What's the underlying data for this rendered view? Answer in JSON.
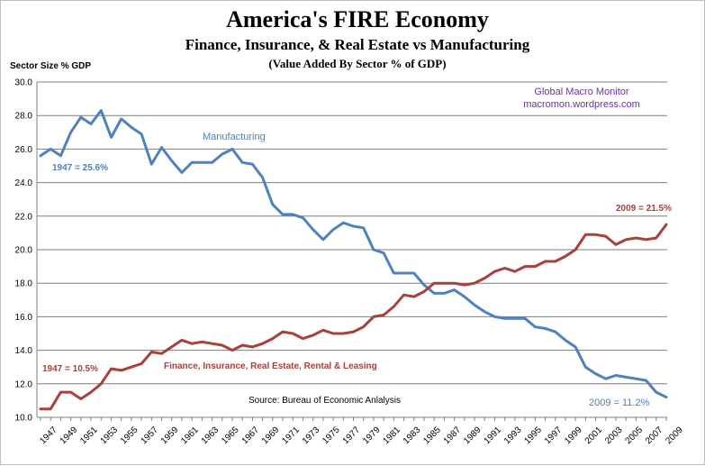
{
  "chart_data": {
    "type": "line",
    "title": "America's FIRE Economy",
    "subtitle": "Finance, Insurance, & Real Estate vs Manufacturing",
    "subtitle2": "(Value Added By Sector % of GDP)",
    "ylabel": "Sector Size % GDP",
    "ylim": [
      10.0,
      30.0
    ],
    "yticks": [
      "10.0",
      "12.0",
      "14.0",
      "16.0",
      "18.0",
      "20.0",
      "22.0",
      "24.0",
      "26.0",
      "28.0",
      "30.0"
    ],
    "xticks": [
      "1947",
      "1949",
      "1951",
      "1953",
      "1955",
      "1957",
      "1959",
      "1961",
      "1963",
      "1965",
      "1967",
      "1969",
      "1971",
      "1973",
      "1975",
      "1977",
      "1979",
      "1981",
      "1983",
      "1985",
      "1987",
      "1989",
      "1991",
      "1993",
      "1995",
      "1997",
      "1999",
      "2001",
      "2003",
      "2005",
      "2007",
      "2009"
    ],
    "grid": true,
    "x": [
      1947,
      1948,
      1949,
      1950,
      1951,
      1952,
      1953,
      1954,
      1955,
      1956,
      1957,
      1958,
      1959,
      1960,
      1961,
      1962,
      1963,
      1964,
      1965,
      1966,
      1967,
      1968,
      1969,
      1970,
      1971,
      1972,
      1973,
      1974,
      1975,
      1976,
      1977,
      1978,
      1979,
      1980,
      1981,
      1982,
      1983,
      1984,
      1985,
      1986,
      1987,
      1988,
      1989,
      1990,
      1991,
      1992,
      1993,
      1994,
      1995,
      1996,
      1997,
      1998,
      1999,
      2000,
      2001,
      2002,
      2003,
      2004,
      2005,
      2006,
      2007,
      2008,
      2009
    ],
    "series": [
      {
        "name": "Manufacturing",
        "color": "#4f81bd",
        "values": [
          25.6,
          26.0,
          25.6,
          27.0,
          27.9,
          27.5,
          28.3,
          26.7,
          27.8,
          27.3,
          26.9,
          25.1,
          26.1,
          25.3,
          24.6,
          25.2,
          25.2,
          25.2,
          25.7,
          26.0,
          25.2,
          25.1,
          24.3,
          22.7,
          22.1,
          22.1,
          21.9,
          21.2,
          20.6,
          21.2,
          21.6,
          21.4,
          21.3,
          20.0,
          19.8,
          18.6,
          18.6,
          18.6,
          17.9,
          17.4,
          17.4,
          17.6,
          17.2,
          16.7,
          16.3,
          16.0,
          15.9,
          15.9,
          15.9,
          15.4,
          15.3,
          15.1,
          14.6,
          14.2,
          13.0,
          12.6,
          12.3,
          12.5,
          12.4,
          12.3,
          12.2,
          11.5,
          11.2
        ]
      },
      {
        "name": "Finance, Insurance, Real Estate, Rental  & Leasing",
        "color": "#a6413c",
        "values": [
          10.5,
          10.5,
          11.5,
          11.5,
          11.1,
          11.5,
          12.0,
          12.9,
          12.8,
          13.0,
          13.2,
          13.9,
          13.8,
          14.2,
          14.6,
          14.4,
          14.5,
          14.4,
          14.3,
          14.0,
          14.3,
          14.2,
          14.4,
          14.7,
          15.1,
          15.0,
          14.7,
          14.9,
          15.2,
          15.0,
          15.0,
          15.1,
          15.4,
          16.0,
          16.1,
          16.6,
          17.3,
          17.2,
          17.5,
          18.0,
          18.0,
          18.0,
          17.9,
          18.0,
          18.3,
          18.7,
          18.9,
          18.7,
          19.0,
          19.0,
          19.3,
          19.3,
          19.6,
          20.0,
          20.9,
          20.9,
          20.8,
          20.3,
          20.6,
          20.7,
          20.6,
          20.7,
          21.5
        ]
      }
    ],
    "annotations": {
      "manufacturing_label": "Manufacturing",
      "fire_label": "Finance, Insurance, Real Estate, Rental  & Leasing",
      "mfg_start": "1947 = 25.6%",
      "mfg_end": "2009 = 11.2%",
      "fire_start": "1947 = 10.5%",
      "fire_end": "2009 = 21.5%",
      "source": "Source:  Bureau of Economic Anlalysis",
      "credit_line1": "Global Macro Monitor",
      "credit_line2": "macromon.wordpress.com"
    },
    "colors": {
      "manufacturing": "#4f81bd",
      "fire": "#a6413c",
      "credit": "#7030a0",
      "grid": "#7f7f7f"
    }
  }
}
